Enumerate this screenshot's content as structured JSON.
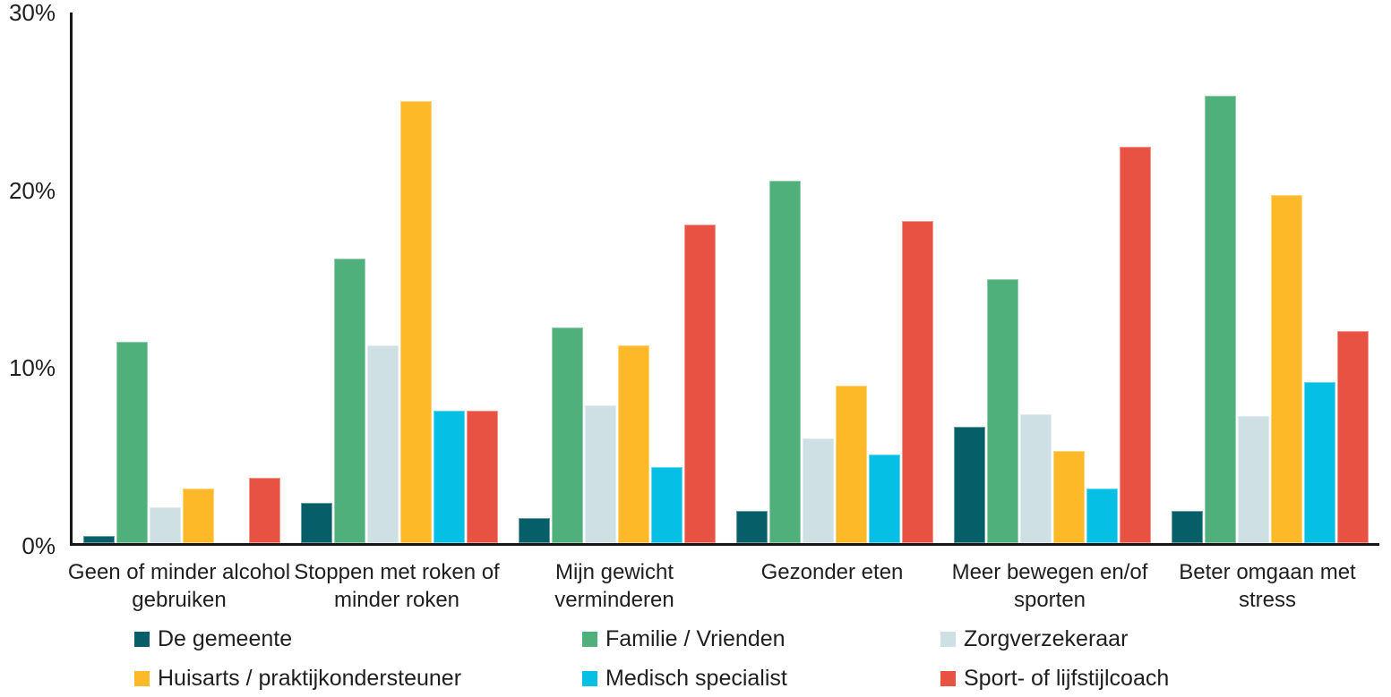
{
  "chart_data": {
    "type": "bar",
    "title": "",
    "xlabel": "",
    "ylabel": "",
    "categories": [
      "Geen of minder alcohol gebruiken",
      "Stoppen met roken of minder roken",
      "Mijn gewicht verminderen",
      "Gezonder eten",
      "Meer bewegen en/of sporten",
      "Beter omgaan met stress"
    ],
    "series": [
      {
        "name": "De gemeente",
        "color": "#055e68",
        "values": [
          0.4,
          2.3,
          1.4,
          1.8,
          6.6,
          1.8
        ]
      },
      {
        "name": "Familie / Vrienden",
        "color": "#4fb07b",
        "values": [
          11.4,
          16.1,
          12.2,
          20.5,
          14.9,
          25.3
        ]
      },
      {
        "name": "Zorgverzekeraar",
        "color": "#cfe0e4",
        "values": [
          2.0,
          11.2,
          7.8,
          5.9,
          7.3,
          7.2
        ]
      },
      {
        "name": "Huisarts / praktijkondersteuner",
        "color": "#fdb927",
        "values": [
          3.1,
          25.0,
          11.2,
          8.9,
          5.2,
          19.7
        ]
      },
      {
        "name": "Medisch specialist",
        "color": "#05c0e4",
        "values": [
          0,
          7.5,
          4.3,
          5.0,
          3.1,
          9.1
        ]
      },
      {
        "name": "Sport- of lijfstijlcoach",
        "color": "#e85243",
        "values": [
          3.7,
          7.5,
          18.0,
          18.2,
          22.4,
          12.0
        ]
      }
    ],
    "y_axis": {
      "ticks": [
        "0%",
        "10%",
        "20%",
        "30%"
      ],
      "tick_values": [
        0,
        10,
        20,
        30
      ],
      "min": 0,
      "max": 30
    },
    "grid": false,
    "legend_position": "bottom",
    "legend_columns": 3
  }
}
